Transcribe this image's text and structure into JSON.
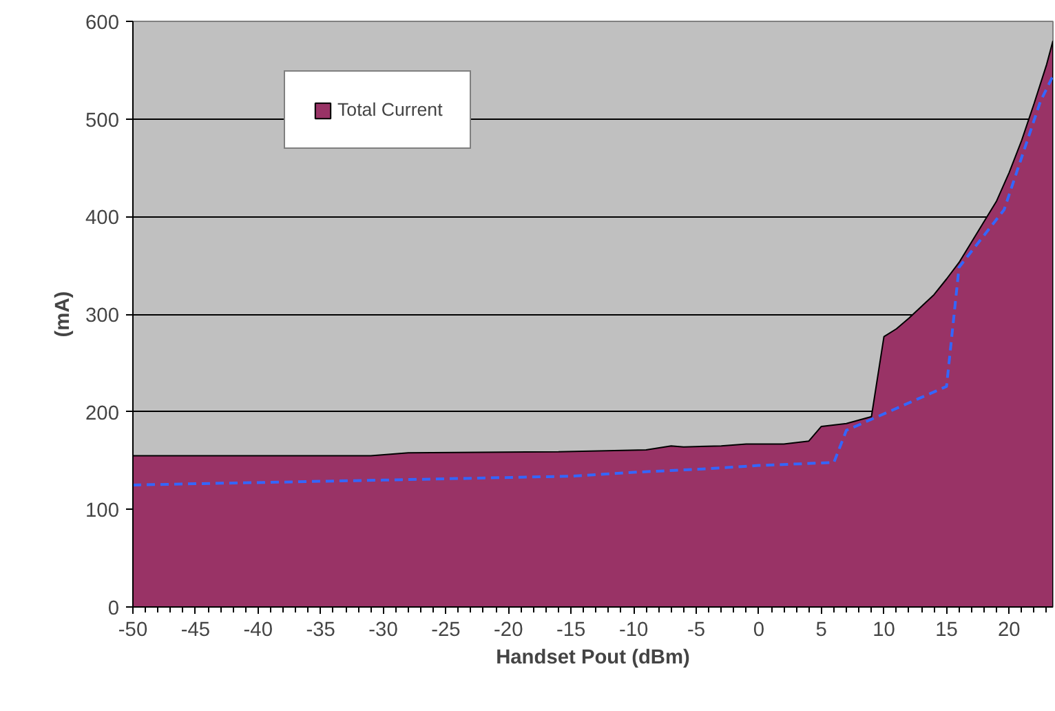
{
  "chart_data": {
    "type": "area",
    "xlabel": "Handset Pout (dBm)",
    "ylabel": "(mA)",
    "xlim": [
      -50,
      23.5
    ],
    "xticks": [
      -50,
      -45,
      -40,
      -35,
      -30,
      -25,
      -20,
      -15,
      -10,
      -5,
      0,
      5,
      10,
      15,
      20
    ],
    "ylim": [
      0,
      600
    ],
    "yticks": [
      0,
      100,
      200,
      300,
      400,
      500,
      600
    ],
    "grid": "y",
    "legend": "top left",
    "series": [
      {
        "name": "Total Current",
        "color": "#993366",
        "x": [
          -50,
          -31,
          -28,
          -16,
          -9,
          -7,
          -6,
          -3,
          -1,
          2,
          4,
          5,
          7,
          9,
          10,
          11,
          12,
          13,
          14,
          15,
          16,
          17,
          18,
          19,
          20,
          21,
          22,
          23,
          23.5
        ],
        "values": [
          155,
          155,
          158,
          159,
          161,
          165,
          164,
          165,
          167,
          167,
          170,
          185,
          188,
          195,
          277,
          285,
          296,
          308,
          320,
          336,
          353,
          374,
          395,
          416,
          445,
          478,
          516,
          556,
          580
        ]
      },
      {
        "type": "line",
        "color": "#3366ff",
        "line_style": "dashed",
        "x": [
          -50,
          -30,
          -15,
          -10,
          -5,
          0,
          6,
          7,
          15,
          16,
          19.6,
          22.5,
          23.5
        ],
        "values": [
          125,
          130,
          134,
          138,
          141,
          145,
          148,
          181,
          226,
          348,
          407,
          518,
          544
        ]
      }
    ]
  }
}
